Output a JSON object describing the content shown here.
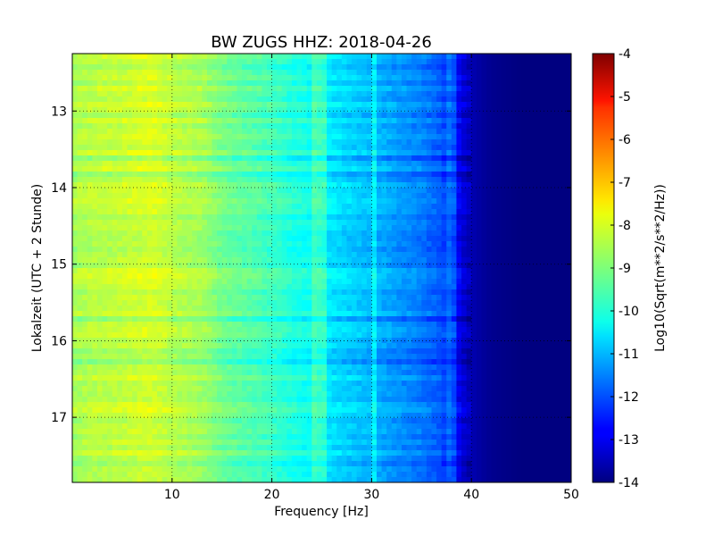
{
  "chart_data": {
    "type": "heatmap",
    "title": "BW ZUGS HHZ: 2018-04-26",
    "xlabel": "Frequency [Hz]",
    "ylabel": "Lokalzeit (UTC + 2 Stunde)",
    "xlim": [
      0,
      50
    ],
    "ylim": [
      12.25,
      17.85
    ],
    "y_inverted": true,
    "x_ticks": [
      "10",
      "20",
      "30",
      "40",
      "50"
    ],
    "x_tick_values": [
      10,
      20,
      30,
      40,
      50
    ],
    "y_ticks": [
      "13",
      "14",
      "15",
      "16",
      "17"
    ],
    "y_tick_values": [
      13,
      14,
      15,
      16,
      17
    ],
    "grid": true,
    "colormap": "jet",
    "colorbar": {
      "label": "Log10(Sqrt(m**2/s**2/Hz))",
      "vmin": -14,
      "vmax": -4,
      "ticks": [
        "-4",
        "-5",
        "-6",
        "-7",
        "-8",
        "-9",
        "-10",
        "-11",
        "-12",
        "-13",
        "-14"
      ],
      "tick_values": [
        -4,
        -5,
        -6,
        -7,
        -8,
        -9,
        -10,
        -11,
        -12,
        -13,
        -14
      ]
    },
    "frequency_profile": {
      "frequency_hz": [
        0,
        2,
        5,
        8,
        10,
        13,
        15,
        18,
        20,
        22,
        24,
        25,
        27,
        30,
        33,
        35,
        37,
        38,
        39,
        40,
        41,
        42,
        45,
        50
      ],
      "log10_amplitude": [
        -8.6,
        -8.4,
        -8.3,
        -8.1,
        -8.4,
        -8.6,
        -9.1,
        -9.4,
        -9.6,
        -9.9,
        -10.1,
        -10.3,
        -10.6,
        -10.9,
        -11.3,
        -11.5,
        -11.9,
        -12.4,
        -13.0,
        -13.5,
        -13.7,
        -13.85,
        -14.0,
        -14.0
      ]
    },
    "line_features_hz": [
      24.5,
      25.2,
      30.4,
      37.6,
      38.4
    ],
    "quiet_bands_local_time": [
      13.6,
      13.85,
      15.75,
      16.1,
      16.25,
      17.6
    ]
  }
}
